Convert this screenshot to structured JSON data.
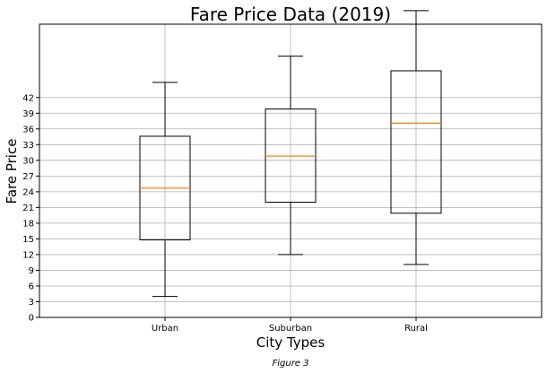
{
  "chart_data": {
    "type": "box",
    "title": "Fare Price Data (2019)",
    "xlabel": "City Types",
    "ylabel": "Fare Price",
    "caption": "Figure 3",
    "ylim": [
      0,
      56
    ],
    "yticks": [
      0,
      3,
      6,
      9,
      12,
      15,
      18,
      21,
      24,
      27,
      30,
      33,
      36,
      39,
      42
    ],
    "ytick_labels": [
      "0",
      "3",
      "6",
      "9",
      "12",
      "15",
      "18",
      "21",
      "24",
      "27",
      "30",
      "33",
      "36",
      "39",
      "42"
    ],
    "categories": [
      "Urban",
      "Suburban",
      "Rural"
    ],
    "grid": true,
    "colors": {
      "box": "#000000",
      "median": "#ff7f0e",
      "grid": "#b0b0b0"
    },
    "boxes": [
      {
        "category": "Urban",
        "whislo": 4.0,
        "q1": 14.8,
        "median": 24.7,
        "q3": 34.6,
        "whishi": 44.9
      },
      {
        "category": "Suburban",
        "whislo": 12.0,
        "q1": 22.0,
        "median": 30.8,
        "q3": 39.8,
        "whishi": 49.9
      },
      {
        "category": "Rural",
        "whislo": 10.1,
        "q1": 19.9,
        "median": 37.1,
        "q3": 47.1,
        "whishi": 58.6
      }
    ]
  }
}
